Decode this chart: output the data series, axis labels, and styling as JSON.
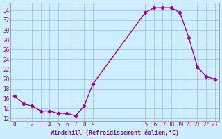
{
  "x": [
    0,
    1,
    2,
    3,
    4,
    5,
    6,
    7,
    8,
    9,
    15,
    16,
    17,
    18,
    19,
    20,
    21,
    22,
    23
  ],
  "y": [
    16.5,
    15.0,
    14.5,
    13.5,
    13.5,
    13.0,
    13.0,
    12.5,
    14.5,
    19.0,
    33.5,
    34.5,
    34.5,
    34.5,
    33.5,
    28.5,
    22.5,
    20.5,
    20.0
  ],
  "line_color": "#990099",
  "marker": "+",
  "bg_color": "#cceeff",
  "grid_color": "#aabbcc",
  "xlabel": "Windchill (Refroidissement éolien,°C)",
  "xlabel_color": "#990099",
  "tick_color": "#990099",
  "xticks": [
    0,
    1,
    2,
    3,
    4,
    5,
    6,
    7,
    8,
    9,
    15,
    16,
    17,
    18,
    19,
    20,
    21,
    22,
    23
  ],
  "yticks": [
    12,
    14,
    16,
    18,
    20,
    22,
    24,
    26,
    28,
    30,
    32,
    34
  ],
  "ylim": [
    11.5,
    35.5
  ],
  "xlim": [
    -0.5,
    23.5
  ]
}
